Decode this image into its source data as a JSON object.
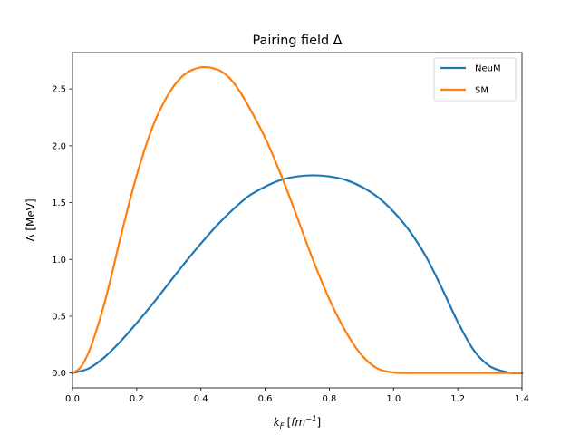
{
  "chart_data": {
    "type": "line",
    "title": "Pairing field Δ",
    "xlabel_main": "k",
    "xlabel_sub": "F",
    "xlabel_unit_base": "fm",
    "xlabel_unit_exp": "−1",
    "ylabel": "Δ [MeV]",
    "xlim": [
      0.0,
      1.4
    ],
    "ylim": [
      -0.13,
      2.82
    ],
    "xticks": [
      0.0,
      0.2,
      0.4,
      0.6,
      0.8,
      1.0,
      1.2,
      1.4
    ],
    "xtick_labels": [
      "0.0",
      "0.2",
      "0.4",
      "0.6",
      "0.8",
      "1.0",
      "1.2",
      "1.4"
    ],
    "yticks": [
      0.0,
      0.5,
      1.0,
      1.5,
      2.0,
      2.5
    ],
    "ytick_labels": [
      "0.0",
      "0.5",
      "1.0",
      "1.5",
      "2.0",
      "2.5"
    ],
    "grid": false,
    "legend_position": "upper right",
    "series": [
      {
        "name": "NeuM",
        "color": "#1f77b4",
        "x": [
          0.0,
          0.05,
          0.1,
          0.15,
          0.2,
          0.25,
          0.3,
          0.35,
          0.4,
          0.45,
          0.5,
          0.55,
          0.6,
          0.65,
          0.7,
          0.75,
          0.8,
          0.85,
          0.9,
          0.95,
          1.0,
          1.05,
          1.1,
          1.15,
          1.2,
          1.25,
          1.3,
          1.35,
          1.37,
          1.4
        ],
        "values": [
          0.0,
          0.04,
          0.14,
          0.28,
          0.44,
          0.61,
          0.79,
          0.97,
          1.14,
          1.3,
          1.44,
          1.56,
          1.64,
          1.7,
          1.73,
          1.74,
          1.73,
          1.7,
          1.64,
          1.55,
          1.42,
          1.25,
          1.03,
          0.75,
          0.45,
          0.2,
          0.06,
          0.01,
          0.0,
          0.0
        ]
      },
      {
        "name": "SM",
        "color": "#ff7f0e",
        "x": [
          0.0,
          0.025,
          0.05,
          0.075,
          0.1,
          0.125,
          0.15,
          0.175,
          0.2,
          0.225,
          0.25,
          0.275,
          0.3,
          0.325,
          0.35,
          0.375,
          0.4,
          0.425,
          0.44,
          0.46,
          0.48,
          0.5,
          0.525,
          0.55,
          0.6,
          0.65,
          0.7,
          0.75,
          0.8,
          0.85,
          0.9,
          0.95,
          1.0,
          1.03,
          1.05,
          1.1,
          1.2,
          1.3,
          1.4
        ],
        "values": [
          0.0,
          0.05,
          0.18,
          0.38,
          0.62,
          0.9,
          1.2,
          1.48,
          1.74,
          1.97,
          2.17,
          2.33,
          2.46,
          2.56,
          2.63,
          2.67,
          2.69,
          2.69,
          2.68,
          2.66,
          2.62,
          2.56,
          2.46,
          2.34,
          2.07,
          1.74,
          1.37,
          0.99,
          0.65,
          0.37,
          0.16,
          0.04,
          0.005,
          0.0,
          0.0,
          0.0,
          0.0,
          0.0,
          0.0
        ]
      }
    ]
  }
}
